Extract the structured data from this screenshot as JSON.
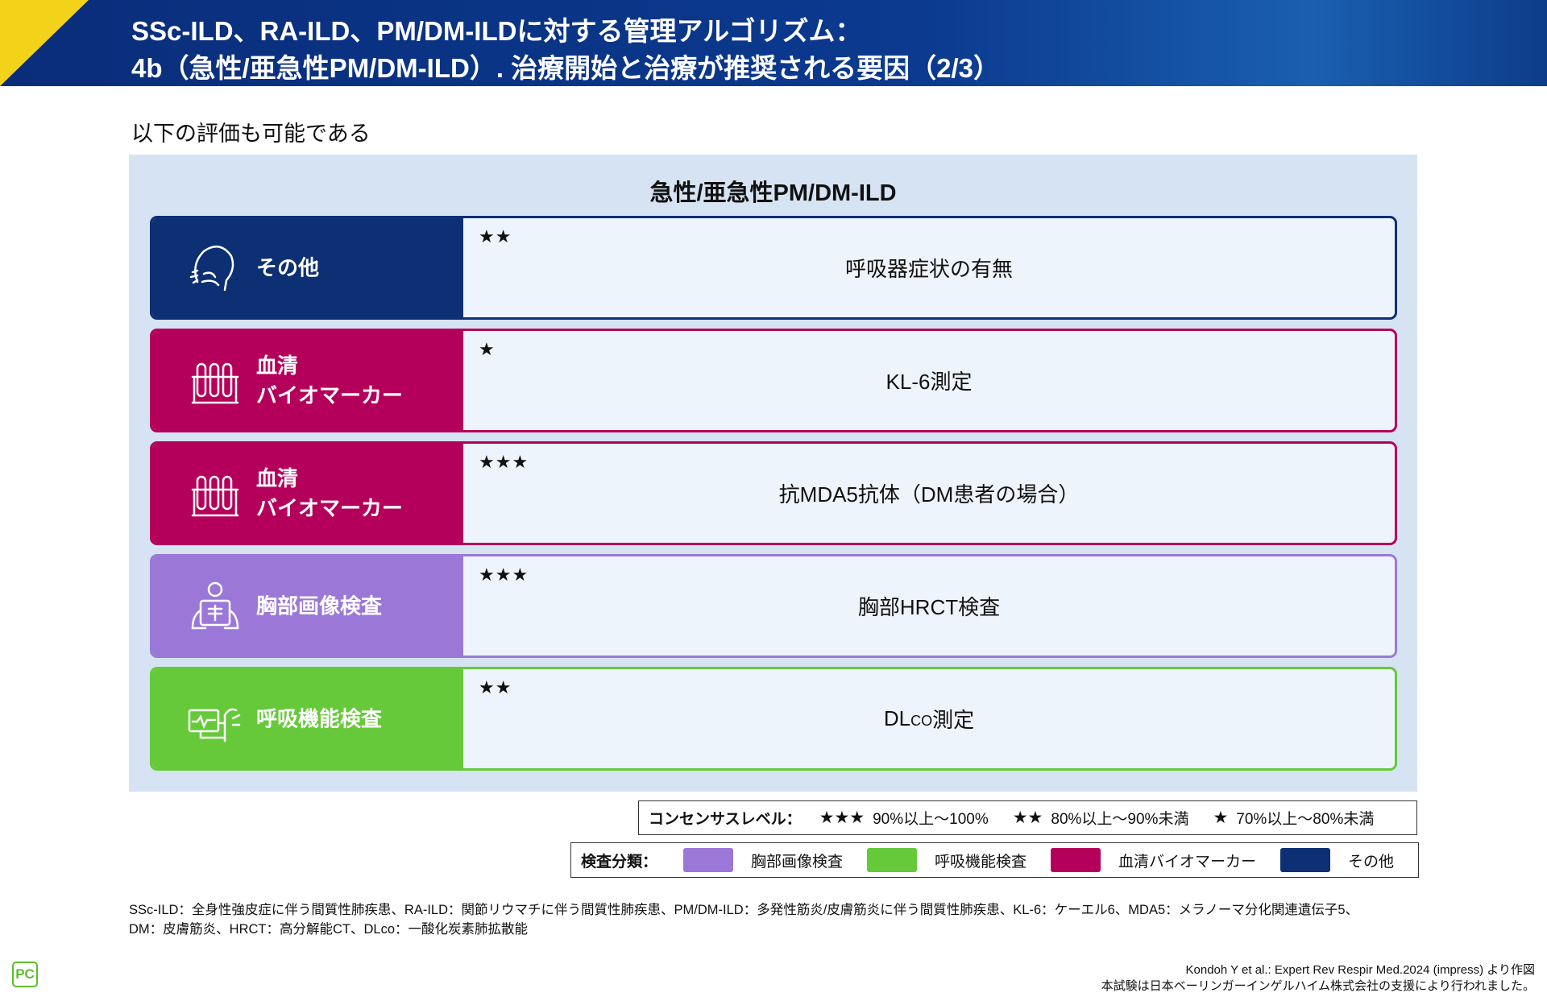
{
  "header": {
    "title": [
      "SSc-ILD、RA-ILD、PM/DM-ILDに対する管理アルゴリズム：",
      "4b（急性/亜急性PM/DM-ILD）. 治療開始と治療が推奨される要因（2/3）"
    ]
  },
  "subtitle": "以下の評価も可能である",
  "panel": {
    "title": "急性/亜急性PM/DM-ILD",
    "rows": [
      {
        "label": [
          "その他"
        ],
        "color": "#0d2f73",
        "stars": "★★",
        "item": [
          {
            "text": "呼吸器症状の有無"
          }
        ]
      },
      {
        "label": [
          "血清",
          "バイオマーカー"
        ],
        "color": "#b5005b",
        "stars": "★",
        "item": [
          {
            "text": "KL-6測定"
          }
        ]
      },
      {
        "label": [
          "血清",
          "バイオマーカー"
        ],
        "color": "#b5005b",
        "stars": "★★★",
        "item": [
          {
            "text": "抗MDA5抗体（DM患者の場合）"
          }
        ]
      },
      {
        "label": [
          "胸部画像検査"
        ],
        "color": "#9b78d8",
        "stars": "★★★",
        "item": [
          {
            "text": "胸部HRCT検査"
          }
        ]
      },
      {
        "label": [
          "呼吸機能検査"
        ],
        "color": "#66c93a",
        "stars": "★★",
        "item": [
          {
            "text": "DL"
          },
          {
            "text": "CO",
            "sub": true
          },
          {
            "text": "測定"
          }
        ]
      }
    ]
  },
  "consensus_legend": {
    "label": "コンセンサスレベル：",
    "items": [
      {
        "stars": "★★★",
        "text": "90%以上～100%"
      },
      {
        "stars": "★★",
        "text": "80%以上～90%未満"
      },
      {
        "stars": "★",
        "text": "70%以上～80%未満"
      }
    ]
  },
  "category_legend": {
    "label": "検査分類：",
    "items": [
      {
        "name": "胸部画像検査",
        "color": "#9b78d8"
      },
      {
        "name": "呼吸機能検査",
        "color": "#66c93a"
      },
      {
        "name": "血清バイオマーカー",
        "color": "#b5005b"
      },
      {
        "name": "その他",
        "color": "#0d2f73"
      }
    ]
  },
  "footnotes": [
    "SSc-ILD：全身性強皮症に伴う間質性肺疾患、RA-ILD：関節リウマチに伴う間質性肺疾患、PM/DM-ILD：多発性筋炎/皮膚筋炎に伴う間質性肺疾患、KL-6：ケーエル6、MDA5：メラノーマ分化関連遺伝子5、",
    "DM：皮膚筋炎、HRCT：高分解能CT、DLco：一酸化炭素肺拡散能"
  ],
  "citation": [
    "Kondoh Y et al.: Expert Rev Respir Med.2024 (impress) より作図",
    "本試験は日本ベーリンガーインゲルハイム株式会社の支援により行われました。"
  ],
  "logo": "PC"
}
